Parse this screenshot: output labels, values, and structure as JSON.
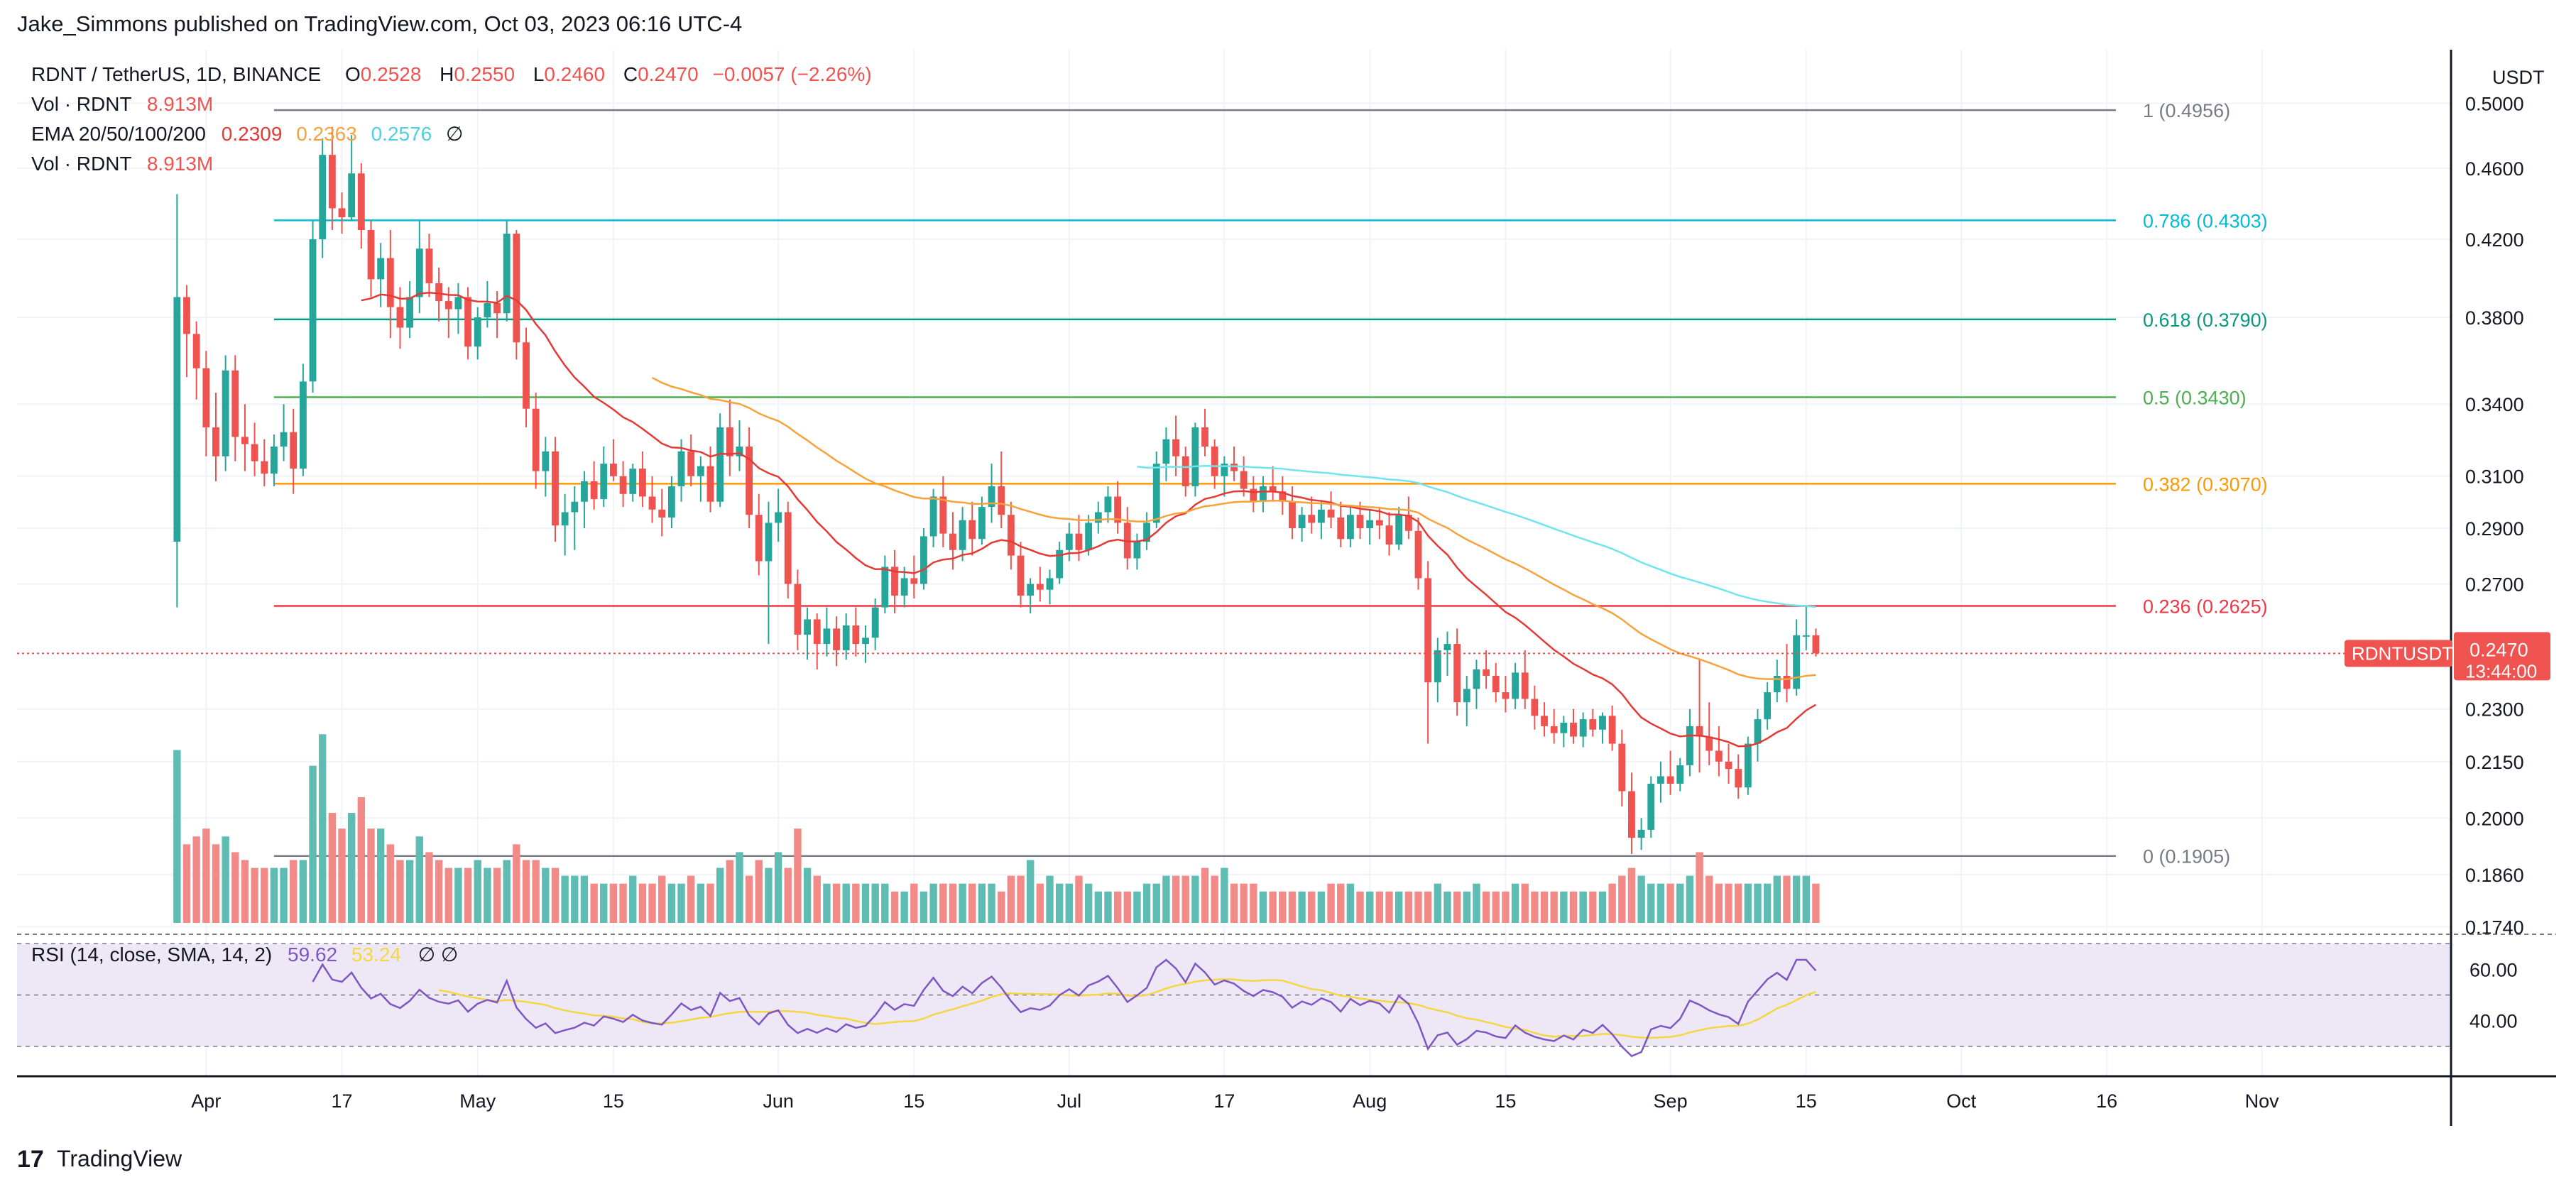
{
  "header": {
    "publisher": "Jake_Simmons published on TradingView.com, Oct 03, 2023 06:16 UTC-4"
  },
  "legend": {
    "symbol": "RDNT / TetherUS, 1D, BINANCE",
    "o_label": "O",
    "o": "0.2528",
    "h_label": "H",
    "h": "0.2550",
    "l_label": "L",
    "l": "0.2460",
    "c_label": "C",
    "c": "0.2470",
    "change": "−0.0057 (−2.26%)",
    "vol1_label": "Vol · RDNT",
    "vol1_value": "8.913M",
    "ema_label": "EMA 20/50/100/200",
    "ema20": "0.2309",
    "ema50": "0.2363",
    "ema100": "0.2576",
    "ema_icon": "∅",
    "vol2_label": "Vol · RDNT",
    "vol2_value": "8.913M"
  },
  "price_scale": {
    "currency": "USDT",
    "last_symbol": "RDNTUSDT",
    "last_price": "0.2470",
    "countdown": "13:44:00"
  },
  "rsi": {
    "label": "RSI (14, close, SMA, 14, 2)",
    "value": "59.62",
    "sma_value": "53.24",
    "icons": "∅  ∅",
    "ticks": [
      {
        "value": 60,
        "label": "60.00"
      },
      {
        "value": 40,
        "label": "40.00"
      }
    ]
  },
  "footer": {
    "brand": "TradingView",
    "logo_text": "17"
  },
  "colors": {
    "up": "#26a69a",
    "down": "#ef5350",
    "up_vol": "#5fbcb3",
    "down_vol": "#f28b88",
    "ema20": "#e53935",
    "ema50": "#f7a23a",
    "ema100": "#6fe5ec",
    "rsi": "#7e57c2",
    "rsi_sma": "#f5d742",
    "rsi_bg": "#ede7f6"
  },
  "chart_data": {
    "type": "candlestick",
    "title": "RDNT / TetherUS, 1D, BINANCE",
    "scale": "log",
    "ylim": [
      0.172,
      0.508
    ],
    "y_ticks": [
      0.5,
      0.46,
      0.42,
      0.38,
      0.34,
      0.31,
      0.29,
      0.27,
      0.23,
      0.215,
      0.2,
      0.186,
      0.174
    ],
    "y_tick_labels": [
      "0.5000",
      "0.4600",
      "0.4200",
      "0.3800",
      "0.3400",
      "0.3100",
      "0.2900",
      "0.2700",
      "0.2300",
      "0.2150",
      "0.2000",
      "0.1860",
      "0.1740"
    ],
    "x_ticks": [
      {
        "label": "Apr",
        "day": 3
      },
      {
        "label": "17",
        "day": 17
      },
      {
        "label": "May",
        "day": 31
      },
      {
        "label": "15",
        "day": 45
      },
      {
        "label": "Jun",
        "day": 62
      },
      {
        "label": "15",
        "day": 76
      },
      {
        "label": "Jul",
        "day": 92
      },
      {
        "label": "17",
        "day": 108
      },
      {
        "label": "Aug",
        "day": 123
      },
      {
        "label": "15",
        "day": 137
      },
      {
        "label": "Sep",
        "day": 154
      },
      {
        "label": "15",
        "day": 168
      },
      {
        "label": "Oct",
        "day": 184
      },
      {
        "label": "16",
        "day": 199
      },
      {
        "label": "Nov",
        "day": 215
      }
    ],
    "x_domain": [
      -16.5,
      234.5
    ],
    "day0": "2023-03-31",
    "fib_levels": [
      {
        "ratio": "1",
        "value": 0.4956,
        "label": "1 (0.4956)",
        "color": "#787b86"
      },
      {
        "ratio": "0.786",
        "value": 0.4303,
        "label": "0.786 (0.4303)",
        "color": "#00bcd4"
      },
      {
        "ratio": "0.618",
        "value": 0.379,
        "label": "0.618 (0.3790)",
        "color": "#089981"
      },
      {
        "ratio": "0.5",
        "value": 0.343,
        "label": "0.5 (0.3430)",
        "color": "#4caf50"
      },
      {
        "ratio": "0.382",
        "value": 0.307,
        "label": "0.382 (0.3070)",
        "color": "#ff9800"
      },
      {
        "ratio": "0.236",
        "value": 0.2625,
        "label": "0.236 (0.2625)",
        "color": "#f23645"
      },
      {
        "ratio": "0",
        "value": 0.1905,
        "label": "0 (0.1905)",
        "color": "#787b86"
      }
    ],
    "fib_start_day": 10,
    "candles": [
      [
        0.285,
        0.445,
        0.262,
        0.39
      ],
      [
        0.39,
        0.396,
        0.352,
        0.372
      ],
      [
        0.372,
        0.378,
        0.342,
        0.356
      ],
      [
        0.356,
        0.364,
        0.318,
        0.33
      ],
      [
        0.33,
        0.345,
        0.308,
        0.318
      ],
      [
        0.318,
        0.362,
        0.312,
        0.355
      ],
      [
        0.355,
        0.362,
        0.316,
        0.326
      ],
      [
        0.326,
        0.34,
        0.312,
        0.323
      ],
      [
        0.323,
        0.332,
        0.31,
        0.316
      ],
      [
        0.316,
        0.325,
        0.306,
        0.311
      ],
      [
        0.311,
        0.327,
        0.306,
        0.322
      ],
      [
        0.322,
        0.34,
        0.316,
        0.328
      ],
      [
        0.328,
        0.338,
        0.303,
        0.313
      ],
      [
        0.313,
        0.358,
        0.31,
        0.35
      ],
      [
        0.35,
        0.43,
        0.345,
        0.42
      ],
      [
        0.42,
        0.478,
        0.41,
        0.468
      ],
      [
        0.468,
        0.485,
        0.425,
        0.437
      ],
      [
        0.437,
        0.446,
        0.423,
        0.432
      ],
      [
        0.432,
        0.48,
        0.43,
        0.457
      ],
      [
        0.457,
        0.463,
        0.415,
        0.425
      ],
      [
        0.425,
        0.43,
        0.39,
        0.399
      ],
      [
        0.399,
        0.418,
        0.385,
        0.41
      ],
      [
        0.41,
        0.425,
        0.37,
        0.385
      ],
      [
        0.385,
        0.395,
        0.365,
        0.375
      ],
      [
        0.375,
        0.398,
        0.37,
        0.39
      ],
      [
        0.39,
        0.43,
        0.382,
        0.415
      ],
      [
        0.415,
        0.423,
        0.39,
        0.397
      ],
      [
        0.397,
        0.405,
        0.378,
        0.388
      ],
      [
        0.388,
        0.395,
        0.37,
        0.384
      ],
      [
        0.384,
        0.397,
        0.372,
        0.39
      ],
      [
        0.39,
        0.395,
        0.36,
        0.366
      ],
      [
        0.366,
        0.385,
        0.36,
        0.38
      ],
      [
        0.38,
        0.398,
        0.375,
        0.387
      ],
      [
        0.387,
        0.393,
        0.37,
        0.382
      ],
      [
        0.382,
        0.43,
        0.378,
        0.423
      ],
      [
        0.423,
        0.425,
        0.36,
        0.368
      ],
      [
        0.368,
        0.375,
        0.33,
        0.338
      ],
      [
        0.338,
        0.345,
        0.305,
        0.312
      ],
      [
        0.312,
        0.326,
        0.302,
        0.32
      ],
      [
        0.32,
        0.326,
        0.285,
        0.291
      ],
      [
        0.291,
        0.303,
        0.28,
        0.296
      ],
      [
        0.296,
        0.306,
        0.282,
        0.3
      ],
      [
        0.3,
        0.312,
        0.29,
        0.308
      ],
      [
        0.308,
        0.316,
        0.297,
        0.301
      ],
      [
        0.301,
        0.322,
        0.298,
        0.315
      ],
      [
        0.315,
        0.325,
        0.308,
        0.31
      ],
      [
        0.31,
        0.316,
        0.298,
        0.303
      ],
      [
        0.303,
        0.315,
        0.3,
        0.313
      ],
      [
        0.313,
        0.32,
        0.298,
        0.302
      ],
      [
        0.302,
        0.31,
        0.292,
        0.297
      ],
      [
        0.297,
        0.305,
        0.287,
        0.294
      ],
      [
        0.294,
        0.31,
        0.29,
        0.306
      ],
      [
        0.306,
        0.325,
        0.3,
        0.32
      ],
      [
        0.32,
        0.327,
        0.306,
        0.31
      ],
      [
        0.31,
        0.318,
        0.3,
        0.314
      ],
      [
        0.314,
        0.322,
        0.296,
        0.3
      ],
      [
        0.3,
        0.336,
        0.298,
        0.33
      ],
      [
        0.33,
        0.342,
        0.31,
        0.318
      ],
      [
        0.318,
        0.333,
        0.312,
        0.322
      ],
      [
        0.322,
        0.33,
        0.29,
        0.295
      ],
      [
        0.295,
        0.303,
        0.273,
        0.278
      ],
      [
        0.278,
        0.3,
        0.25,
        0.292
      ],
      [
        0.292,
        0.305,
        0.285,
        0.296
      ],
      [
        0.296,
        0.3,
        0.265,
        0.27
      ],
      [
        0.27,
        0.275,
        0.248,
        0.253
      ],
      [
        0.253,
        0.262,
        0.245,
        0.258
      ],
      [
        0.258,
        0.26,
        0.242,
        0.25
      ],
      [
        0.25,
        0.262,
        0.246,
        0.255
      ],
      [
        0.255,
        0.259,
        0.243,
        0.248
      ],
      [
        0.248,
        0.26,
        0.245,
        0.256
      ],
      [
        0.256,
        0.262,
        0.246,
        0.25
      ],
      [
        0.25,
        0.256,
        0.244,
        0.252
      ],
      [
        0.252,
        0.265,
        0.248,
        0.262
      ],
      [
        0.262,
        0.28,
        0.26,
        0.276
      ],
      [
        0.276,
        0.282,
        0.26,
        0.266
      ],
      [
        0.266,
        0.276,
        0.262,
        0.272
      ],
      [
        0.272,
        0.28,
        0.265,
        0.27
      ],
      [
        0.27,
        0.29,
        0.268,
        0.287
      ],
      [
        0.287,
        0.305,
        0.283,
        0.302
      ],
      [
        0.302,
        0.31,
        0.283,
        0.288
      ],
      [
        0.288,
        0.296,
        0.275,
        0.282
      ],
      [
        0.282,
        0.298,
        0.278,
        0.293
      ],
      [
        0.293,
        0.3,
        0.28,
        0.286
      ],
      [
        0.286,
        0.302,
        0.284,
        0.298
      ],
      [
        0.298,
        0.315,
        0.292,
        0.306
      ],
      [
        0.306,
        0.32,
        0.29,
        0.295
      ],
      [
        0.295,
        0.3,
        0.275,
        0.28
      ],
      [
        0.28,
        0.285,
        0.262,
        0.266
      ],
      [
        0.266,
        0.272,
        0.26,
        0.27
      ],
      [
        0.27,
        0.276,
        0.264,
        0.268
      ],
      [
        0.268,
        0.275,
        0.263,
        0.272
      ],
      [
        0.272,
        0.285,
        0.27,
        0.282
      ],
      [
        0.282,
        0.292,
        0.278,
        0.288
      ],
      [
        0.288,
        0.295,
        0.278,
        0.282
      ],
      [
        0.282,
        0.295,
        0.28,
        0.292
      ],
      [
        0.292,
        0.3,
        0.288,
        0.296
      ],
      [
        0.296,
        0.306,
        0.292,
        0.302
      ],
      [
        0.302,
        0.308,
        0.288,
        0.292
      ],
      [
        0.292,
        0.298,
        0.275,
        0.279
      ],
      [
        0.279,
        0.288,
        0.275,
        0.285
      ],
      [
        0.285,
        0.296,
        0.282,
        0.292
      ],
      [
        0.292,
        0.32,
        0.29,
        0.315
      ],
      [
        0.315,
        0.33,
        0.308,
        0.325
      ],
      [
        0.325,
        0.335,
        0.31,
        0.318
      ],
      [
        0.318,
        0.322,
        0.302,
        0.306
      ],
      [
        0.306,
        0.332,
        0.302,
        0.33
      ],
      [
        0.33,
        0.338,
        0.318,
        0.322
      ],
      [
        0.322,
        0.325,
        0.305,
        0.31
      ],
      [
        0.31,
        0.318,
        0.302,
        0.315
      ],
      [
        0.315,
        0.322,
        0.308,
        0.312
      ],
      [
        0.312,
        0.318,
        0.302,
        0.305
      ],
      [
        0.305,
        0.31,
        0.296,
        0.3
      ],
      [
        0.3,
        0.31,
        0.296,
        0.306
      ],
      [
        0.306,
        0.314,
        0.3,
        0.304
      ],
      [
        0.304,
        0.31,
        0.295,
        0.3
      ],
      [
        0.3,
        0.306,
        0.286,
        0.29
      ],
      [
        0.29,
        0.298,
        0.285,
        0.295
      ],
      [
        0.295,
        0.302,
        0.288,
        0.292
      ],
      [
        0.292,
        0.3,
        0.286,
        0.297
      ],
      [
        0.297,
        0.304,
        0.29,
        0.294
      ],
      [
        0.294,
        0.3,
        0.283,
        0.286
      ],
      [
        0.286,
        0.298,
        0.283,
        0.295
      ],
      [
        0.295,
        0.3,
        0.286,
        0.29
      ],
      [
        0.29,
        0.297,
        0.284,
        0.293
      ],
      [
        0.293,
        0.298,
        0.286,
        0.291
      ],
      [
        0.291,
        0.296,
        0.28,
        0.284
      ],
      [
        0.284,
        0.298,
        0.282,
        0.295
      ],
      [
        0.295,
        0.302,
        0.286,
        0.289
      ],
      [
        0.289,
        0.294,
        0.268,
        0.272
      ],
      [
        0.272,
        0.278,
        0.22,
        0.238
      ],
      [
        0.238,
        0.252,
        0.232,
        0.248
      ],
      [
        0.248,
        0.254,
        0.24,
        0.25
      ],
      [
        0.25,
        0.255,
        0.228,
        0.232
      ],
      [
        0.232,
        0.24,
        0.225,
        0.236
      ],
      [
        0.236,
        0.245,
        0.23,
        0.242
      ],
      [
        0.242,
        0.248,
        0.236,
        0.24
      ],
      [
        0.24,
        0.244,
        0.232,
        0.235
      ],
      [
        0.235,
        0.24,
        0.229,
        0.233
      ],
      [
        0.233,
        0.244,
        0.23,
        0.241
      ],
      [
        0.241,
        0.248,
        0.23,
        0.233
      ],
      [
        0.233,
        0.237,
        0.224,
        0.228
      ],
      [
        0.228,
        0.232,
        0.222,
        0.225
      ],
      [
        0.225,
        0.23,
        0.22,
        0.223
      ],
      [
        0.223,
        0.228,
        0.219,
        0.226
      ],
      [
        0.226,
        0.23,
        0.22,
        0.222
      ],
      [
        0.222,
        0.229,
        0.219,
        0.227
      ],
      [
        0.227,
        0.23,
        0.222,
        0.224
      ],
      [
        0.224,
        0.229,
        0.22,
        0.228
      ],
      [
        0.228,
        0.231,
        0.218,
        0.22
      ],
      [
        0.22,
        0.224,
        0.203,
        0.207
      ],
      [
        0.207,
        0.212,
        0.191,
        0.195
      ],
      [
        0.195,
        0.2,
        0.192,
        0.197
      ],
      [
        0.197,
        0.211,
        0.195,
        0.209
      ],
      [
        0.209,
        0.215,
        0.204,
        0.211
      ],
      [
        0.211,
        0.218,
        0.206,
        0.209
      ],
      [
        0.209,
        0.216,
        0.207,
        0.214
      ],
      [
        0.214,
        0.23,
        0.211,
        0.225
      ],
      [
        0.225,
        0.245,
        0.212,
        0.222
      ],
      [
        0.222,
        0.232,
        0.214,
        0.218
      ],
      [
        0.218,
        0.225,
        0.211,
        0.215
      ],
      [
        0.215,
        0.22,
        0.209,
        0.213
      ],
      [
        0.213,
        0.217,
        0.205,
        0.208
      ],
      [
        0.208,
        0.222,
        0.206,
        0.22
      ],
      [
        0.22,
        0.23,
        0.215,
        0.227
      ],
      [
        0.227,
        0.238,
        0.224,
        0.235
      ],
      [
        0.235,
        0.245,
        0.232,
        0.24
      ],
      [
        0.24,
        0.25,
        0.232,
        0.236
      ],
      [
        0.236,
        0.258,
        0.234,
        0.2528
      ],
      [
        0.2528,
        0.2625,
        0.248,
        0.2528
      ],
      [
        0.2528,
        0.255,
        0.246,
        0.247
      ]
    ],
    "volumes": [
      22,
      10,
      11,
      12,
      10,
      11,
      9,
      8,
      7,
      7,
      7,
      7,
      8,
      8,
      20,
      24,
      14,
      12,
      14,
      16,
      12,
      12,
      10,
      8,
      8,
      11,
      9,
      8,
      7,
      7,
      7,
      8,
      7,
      7,
      8,
      10,
      8,
      8,
      7,
      7,
      6,
      6,
      6,
      5,
      5,
      5,
      5,
      6,
      5,
      5,
      6,
      5,
      5,
      6,
      5,
      5,
      7,
      8,
      9,
      6,
      8,
      7,
      9,
      7,
      12,
      7,
      6,
      5,
      5,
      5,
      5,
      5,
      5,
      5,
      4,
      4,
      5,
      4,
      5,
      5,
      5,
      5,
      5,
      5,
      5,
      4,
      6,
      6,
      8,
      5,
      6,
      5,
      5,
      6,
      5,
      4,
      4,
      4,
      4,
      4,
      5,
      5,
      6,
      6,
      6,
      6,
      7,
      6,
      7,
      5,
      5,
      5,
      4,
      4,
      4,
      4,
      4,
      4,
      4,
      5,
      5,
      5,
      4,
      4,
      4,
      4,
      4,
      4,
      4,
      4,
      5,
      4,
      4,
      4,
      5,
      4,
      4,
      4,
      5,
      5,
      4,
      4,
      4,
      4,
      4,
      4,
      4,
      4,
      5,
      6,
      7,
      6,
      5,
      5,
      5,
      5,
      6,
      9,
      6,
      5,
      5,
      5,
      5,
      5,
      5,
      6,
      6,
      6,
      6,
      5
    ],
    "volume_max": 28,
    "series": [
      {
        "name": "EMA 20",
        "last": 0.2309
      },
      {
        "name": "EMA 50",
        "last": 0.2363
      },
      {
        "name": "EMA 100",
        "last": 0.2576
      }
    ]
  }
}
